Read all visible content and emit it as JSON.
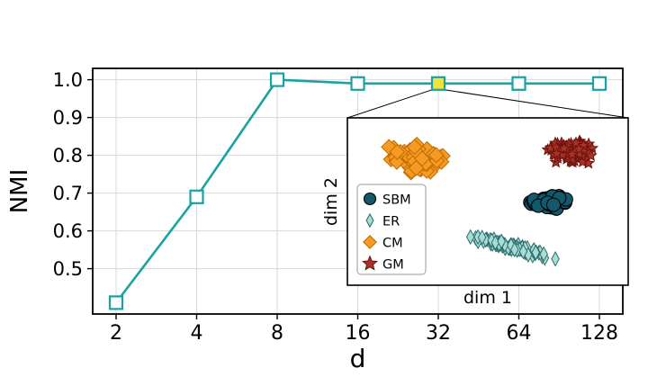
{
  "figure": {
    "background_color": "#ffffff"
  },
  "chart_data": {
    "type": "line",
    "title": "",
    "xlabel": "d",
    "ylabel": "NMI",
    "x_categories": [
      "2",
      "4",
      "8",
      "16",
      "32",
      "64",
      "128"
    ],
    "x_scale": "log2",
    "series": [
      {
        "name": "NMI",
        "values": [
          0.41,
          0.69,
          1.0,
          0.99,
          0.99,
          0.99,
          0.99
        ]
      }
    ],
    "ylim": [
      0.38,
      1.03
    ],
    "yticks": [
      "0.5",
      "0.6",
      "0.7",
      "0.8",
      "0.9",
      "1.0"
    ],
    "grid": true,
    "grid_color": "#d8d8d8",
    "line_color": "#1aa1a1",
    "marker": "square",
    "marker_fill": "#ffffff",
    "highlight": {
      "index": 4,
      "x": "32",
      "fill": "#f2e33c"
    },
    "inset": {
      "xlabel": "dim 1",
      "ylabel": "dim 2",
      "border_color": "#000000",
      "legend": {
        "entries": [
          {
            "label": "SBM",
            "marker": "circle",
            "color": "#14586b",
            "edge": "#000000"
          },
          {
            "label": "ER",
            "marker": "thin-diamond",
            "color": "#a9dcd4",
            "edge": "#2e6f6f"
          },
          {
            "label": "CM",
            "marker": "diamond",
            "color": "#f59a23",
            "edge": "#c06c00"
          },
          {
            "label": "GM",
            "marker": "star",
            "color": "#a93226",
            "edge": "#6e1410"
          }
        ]
      },
      "clusters": [
        {
          "name": "CM",
          "marker": "diamond",
          "color": "#f59a23",
          "edge": "#c06c00",
          "cx": 0.25,
          "cy": 0.76,
          "sx": 0.13,
          "sy": 0.105,
          "slope": 0,
          "count": 65,
          "size": 15
        },
        {
          "name": "GM",
          "marker": "star",
          "color": "#a93226",
          "edge": "#6e1410",
          "cx": 0.8,
          "cy": 0.8,
          "sx": 0.1,
          "sy": 0.085,
          "slope": 0,
          "count": 140,
          "size": 10
        },
        {
          "name": "ER",
          "marker": "thin-diamond",
          "color": "#a9dcd4",
          "edge": "#2e6f6f",
          "cx": 0.58,
          "cy": 0.23,
          "sx": 0.19,
          "sy": 0.03,
          "slope": -0.45,
          "count": 95,
          "size": 14
        },
        {
          "name": "SBM",
          "marker": "circle",
          "color": "#14586b",
          "edge": "#000000",
          "cx": 0.72,
          "cy": 0.5,
          "sx": 0.1,
          "sy": 0.065,
          "slope": 0,
          "count": 60,
          "size": 15
        }
      ]
    }
  }
}
